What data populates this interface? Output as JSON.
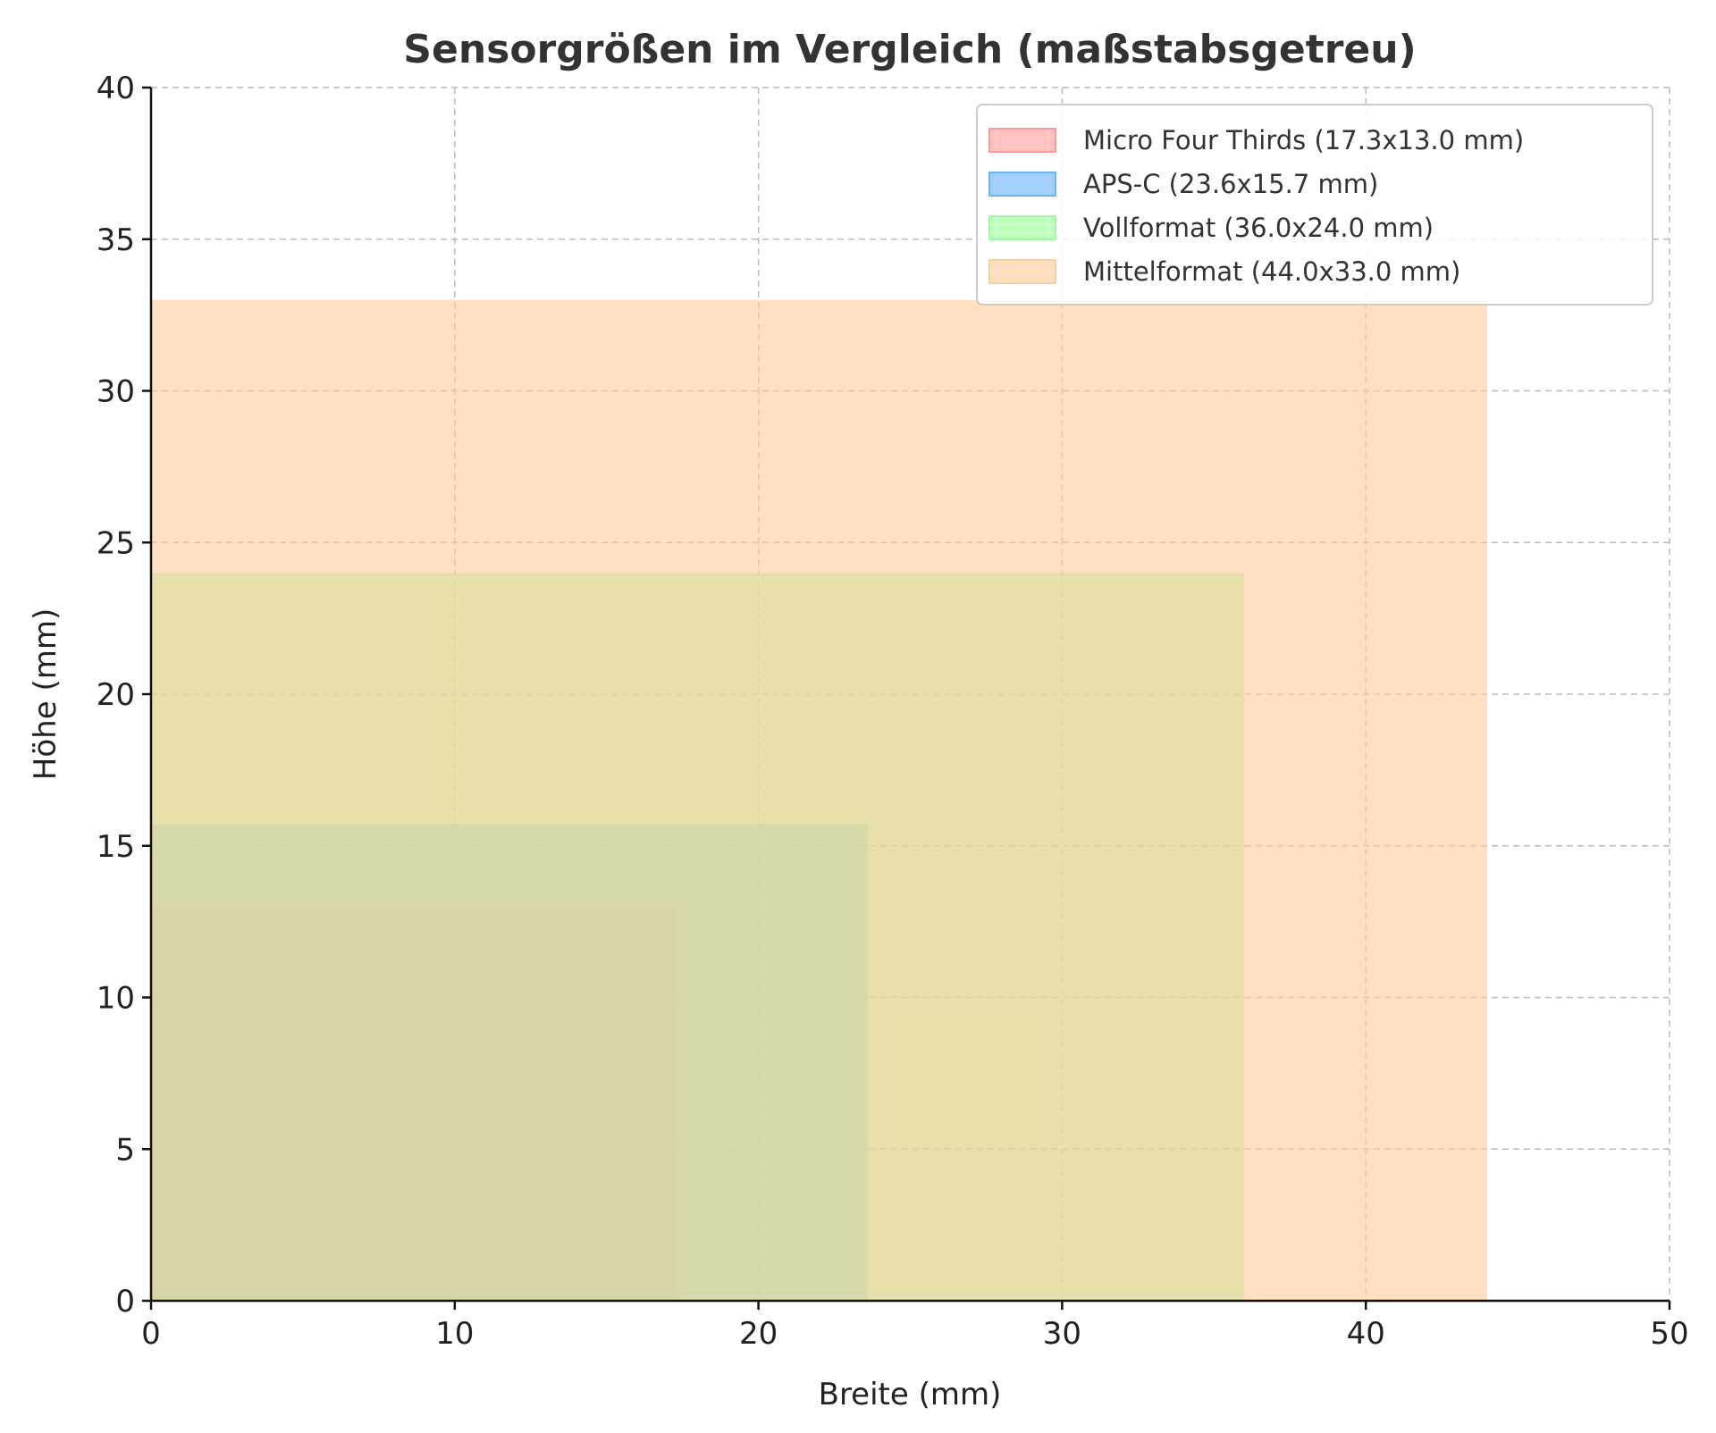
{
  "chart_data": {
    "type": "area",
    "title": "Sensorgrößen im Vergleich (maßstabsgetreu)",
    "xlabel": "Breite (mm)",
    "ylabel": "Höhe (mm)",
    "xlim": [
      0,
      50
    ],
    "ylim": [
      0,
      40
    ],
    "xticks": [
      0,
      10,
      20,
      30,
      40,
      50
    ],
    "yticks": [
      0,
      5,
      10,
      15,
      20,
      25,
      30,
      35,
      40
    ],
    "grid": true,
    "legend_position": "top-right",
    "alpha": 0.6,
    "series": [
      {
        "name": "Micro Four Thirds (17.3x13.0 mm)",
        "width": 17.3,
        "height": 13.0,
        "color": "#ff9999"
      },
      {
        "name": "APS-C (23.6x15.7 mm)",
        "width": 23.6,
        "height": 15.7,
        "color": "#66b3ff"
      },
      {
        "name": "Vollformat (36.0x24.0 mm)",
        "width": 36.0,
        "height": 24.0,
        "color": "#99ff99"
      },
      {
        "name": "Mittelformat (44.0x33.0 mm)",
        "width": 44.0,
        "height": 33.0,
        "color": "#ffcc99"
      }
    ]
  }
}
